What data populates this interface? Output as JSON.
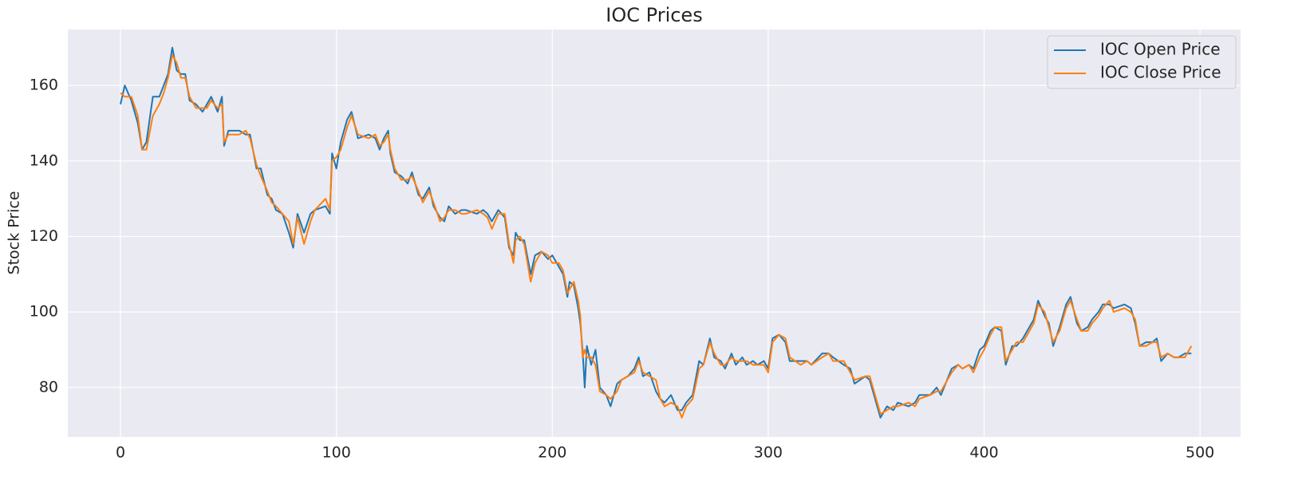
{
  "chart_data": {
    "type": "line",
    "title": "IOC Prices",
    "y_label": "Stock Price",
    "x": [
      0,
      2,
      5,
      8,
      10,
      12,
      15,
      18,
      20,
      22,
      24,
      26,
      28,
      30,
      32,
      35,
      38,
      40,
      42,
      45,
      47,
      48,
      50,
      55,
      58,
      60,
      63,
      65,
      68,
      70,
      72,
      75,
      78,
      80,
      82,
      85,
      88,
      90,
      95,
      97,
      98,
      100,
      102,
      105,
      107,
      110,
      115,
      118,
      120,
      122,
      124,
      125,
      127,
      130,
      133,
      135,
      138,
      140,
      143,
      145,
      148,
      150,
      152,
      155,
      158,
      160,
      165,
      168,
      170,
      172,
      175,
      178,
      180,
      182,
      183,
      185,
      187,
      190,
      192,
      195,
      198,
      200,
      203,
      205,
      207,
      208,
      210,
      212,
      213,
      214,
      215,
      216,
      218,
      220,
      222,
      225,
      227,
      230,
      232,
      235,
      238,
      240,
      242,
      245,
      248,
      250,
      252,
      255,
      258,
      260,
      262,
      265,
      268,
      270,
      273,
      275,
      278,
      280,
      283,
      285,
      288,
      290,
      293,
      295,
      298,
      300,
      302,
      305,
      308,
      310,
      315,
      318,
      320,
      325,
      328,
      330,
      335,
      338,
      340,
      345,
      347,
      350,
      352,
      355,
      358,
      360,
      365,
      368,
      370,
      375,
      378,
      380,
      385,
      388,
      390,
      393,
      395,
      398,
      400,
      403,
      405,
      408,
      410,
      413,
      415,
      418,
      420,
      423,
      425,
      428,
      430,
      432,
      435,
      438,
      440,
      443,
      445,
      448,
      450,
      453,
      455,
      458,
      460,
      465,
      468,
      470,
      472,
      475,
      478,
      480,
      482,
      485,
      488,
      490,
      493,
      496
    ],
    "series": [
      {
        "name": "IOC Open Price",
        "color": "#1f77b4",
        "values": [
          155,
          160,
          156,
          150,
          143,
          145,
          157,
          157,
          160,
          163,
          170,
          164,
          163,
          163,
          156,
          155,
          153,
          155,
          157,
          153,
          157,
          144,
          148,
          148,
          147,
          147,
          138,
          138,
          131,
          130,
          127,
          126,
          121,
          117,
          126,
          121,
          126,
          127,
          128,
          126,
          142,
          138,
          145,
          151,
          153,
          146,
          147,
          146,
          143,
          146,
          148,
          142,
          137,
          136,
          134,
          137,
          131,
          130,
          133,
          128,
          125,
          124,
          128,
          126,
          127,
          127,
          126,
          127,
          126,
          124,
          127,
          125,
          117,
          115,
          121,
          119,
          119,
          110,
          115,
          116,
          114,
          115,
          112,
          110,
          104,
          108,
          107,
          101,
          97,
          90,
          80,
          91,
          86,
          90,
          80,
          78,
          75,
          81,
          82,
          83,
          85,
          88,
          83,
          84,
          79,
          77,
          76,
          78,
          74,
          74,
          76,
          78,
          87,
          86,
          93,
          88,
          87,
          85,
          89,
          86,
          88,
          86,
          87,
          86,
          87,
          85,
          93,
          94,
          92,
          87,
          87,
          87,
          86,
          89,
          89,
          88,
          86,
          85,
          81,
          83,
          82,
          76,
          72,
          75,
          74,
          76,
          75,
          76,
          78,
          78,
          80,
          78,
          85,
          86,
          85,
          86,
          85,
          90,
          91,
          95,
          96,
          95,
          86,
          91,
          91,
          93,
          95,
          98,
          103,
          99,
          97,
          91,
          96,
          102,
          104,
          97,
          95,
          96,
          98,
          100,
          102,
          102,
          101,
          102,
          101,
          97,
          91,
          92,
          92,
          93,
          87,
          89,
          88,
          88,
          89,
          89
        ]
      },
      {
        "name": "IOC Close Price",
        "color": "#ff7f0e",
        "values": [
          158,
          157,
          157,
          152,
          143,
          143,
          152,
          155,
          158,
          162,
          168,
          166,
          162,
          162,
          157,
          154,
          154,
          154,
          156,
          154,
          155,
          145,
          147,
          147,
          148,
          146,
          139,
          136,
          132,
          129,
          128,
          126,
          124,
          118,
          125,
          118,
          124,
          127,
          130,
          127,
          140,
          141,
          143,
          149,
          152,
          147,
          146,
          147,
          144,
          145,
          147,
          143,
          138,
          135,
          135,
          136,
          132,
          129,
          132,
          129,
          124,
          125,
          127,
          127,
          126,
          126,
          127,
          126,
          125,
          122,
          126,
          126,
          118,
          113,
          119,
          120,
          118,
          108,
          113,
          116,
          115,
          113,
          113,
          111,
          105,
          106,
          108,
          103,
          99,
          88,
          90,
          88,
          88,
          86,
          79,
          78,
          77,
          79,
          82,
          83,
          84,
          87,
          84,
          83,
          82,
          77,
          75,
          76,
          75,
          72,
          75,
          77,
          85,
          86,
          92,
          89,
          86,
          86,
          88,
          87,
          87,
          87,
          86,
          86,
          86,
          84,
          92,
          94,
          93,
          88,
          86,
          87,
          86,
          88,
          89,
          87,
          87,
          84,
          82,
          83,
          83,
          77,
          73,
          74,
          75,
          75,
          76,
          75,
          77,
          78,
          79,
          79,
          84,
          86,
          85,
          86,
          84,
          88,
          90,
          94,
          96,
          96,
          87,
          90,
          92,
          92,
          94,
          97,
          102,
          100,
          96,
          92,
          95,
          101,
          103,
          98,
          95,
          95,
          97,
          99,
          101,
          103,
          100,
          101,
          100,
          98,
          91,
          91,
          92,
          92,
          88,
          89,
          88,
          88,
          88,
          91
        ]
      }
    ],
    "xlim": [
      -24.4,
      518.8
    ],
    "ylim": [
      66.9,
      174.8
    ],
    "xticks": [
      0,
      100,
      200,
      300,
      400,
      500
    ],
    "yticks": [
      80,
      100,
      120,
      140,
      160
    ],
    "grid": true,
    "legend": "upper right"
  }
}
